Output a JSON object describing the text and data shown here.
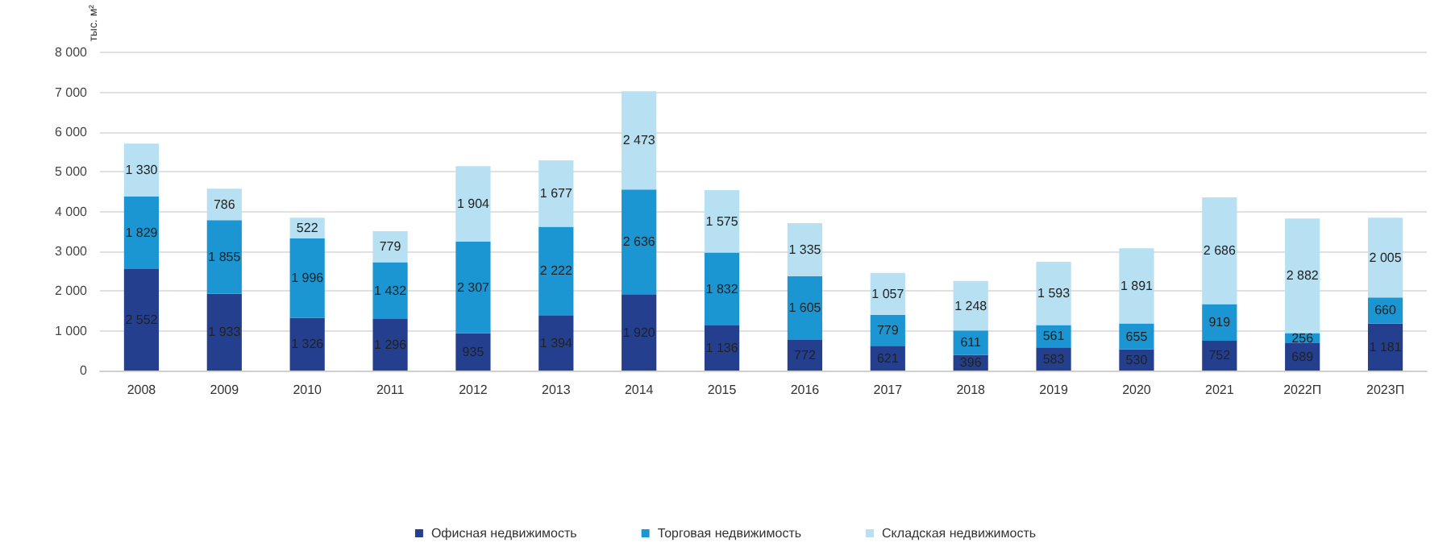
{
  "chart_data": {
    "type": "bar",
    "stacked": true,
    "ylabel": "тыс. м²",
    "categories": [
      "2008",
      "2009",
      "2010",
      "2011",
      "2012",
      "2013",
      "2014",
      "2015",
      "2016",
      "2017",
      "2018",
      "2019",
      "2020",
      "2021",
      "2022П",
      "2023П"
    ],
    "series": [
      {
        "name": "Офисная недвижимость",
        "color": "#253f8f",
        "values": [
          2552,
          1933,
          1326,
          1296,
          935,
          1394,
          1920,
          1136,
          772,
          621,
          396,
          583,
          530,
          752,
          689,
          1181
        ]
      },
      {
        "name": "Торговая недвижимость",
        "color": "#1b96d2",
        "values": [
          1829,
          1855,
          1996,
          1432,
          2307,
          2222,
          2636,
          1832,
          1605,
          779,
          611,
          561,
          655,
          919,
          256,
          660
        ]
      },
      {
        "name": "Складская недвижимость",
        "color": "#b7e0f2",
        "values": [
          1330,
          786,
          522,
          779,
          1904,
          1677,
          2473,
          1575,
          1335,
          1057,
          1248,
          1593,
          1891,
          2686,
          2882,
          2005
        ]
      }
    ],
    "ylim": [
      0,
      8000
    ],
    "yticks": [
      {
        "value": 0,
        "label": "0"
      },
      {
        "value": 1000,
        "label": "1 000"
      },
      {
        "value": 2000,
        "label": "2 000"
      },
      {
        "value": 3000,
        "label": "3 000"
      },
      {
        "value": 4000,
        "label": "4 000"
      },
      {
        "value": 5000,
        "label": "5 000"
      },
      {
        "value": 6000,
        "label": "6 000"
      },
      {
        "value": 7000,
        "label": "7 000"
      },
      {
        "value": 8000,
        "label": "8 000"
      }
    ],
    "grid": "y",
    "legend": "bottom",
    "data_labels": true
  }
}
